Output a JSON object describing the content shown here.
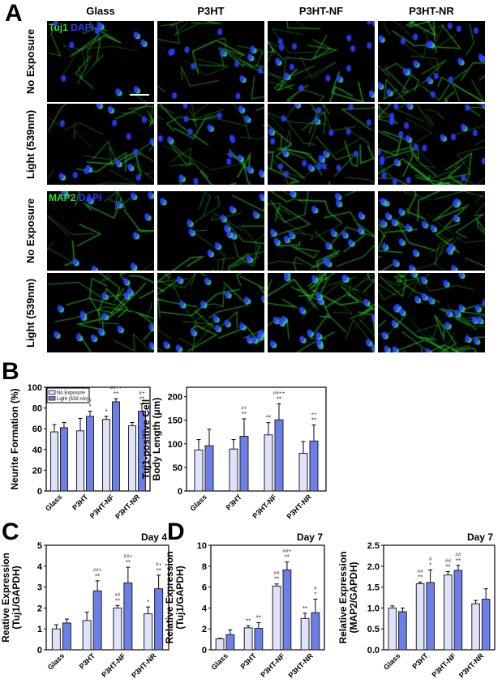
{
  "panel_a": {
    "letter": "A",
    "columns": [
      "Glass",
      "P3HT",
      "P3HT-NF",
      "P3HT-NR"
    ],
    "rows": [
      "No Exposure",
      "Light (539nm)",
      "No Exposure",
      "Light (539nm)"
    ],
    "stain_top": {
      "marker": "Tuj1",
      "counter": "DAPI"
    },
    "stain_bottom": {
      "marker": "MAP2",
      "counter": "DAPI"
    },
    "colors": {
      "marker": "#2fe02f",
      "nuclei": "#2a3cff"
    }
  },
  "letters": {
    "b": "B",
    "c": "C",
    "d": "D"
  },
  "colors": {
    "no_exposure": "#dfe2fb",
    "light": "#6c7ee8"
  },
  "chart_data": [
    {
      "id": "b-neurite",
      "type": "bar",
      "title": "",
      "xlabel": "",
      "ylabel": [
        "Neurite Formation (%)"
      ],
      "categories": [
        "Glass",
        "P3HT",
        "P3HT-NF",
        "P3HT-NR"
      ],
      "ylim": [
        0,
        100
      ],
      "yticks": [
        "0",
        "20",
        "40",
        "60",
        "80",
        "100"
      ],
      "grid": false,
      "legend": {
        "placement": "top-left",
        "entries": [
          "No Exposure",
          "Light (539 nm)"
        ]
      },
      "series": [
        {
          "name": "No Exposure",
          "values": [
            57,
            58,
            69,
            63
          ],
          "error_upper": [
            64,
            70,
            72,
            66
          ],
          "annotations": [
            [],
            [],
            [
              "*"
            ],
            []
          ]
        },
        {
          "name": "Light (539 nm)",
          "values": [
            61,
            72,
            86,
            77
          ],
          "error_upper": [
            66,
            77,
            89,
            84
          ],
          "annotations": [
            [],
            [
              "#",
              "*"
            ],
            [
              "##++",
              "**"
            ],
            [
              "#+",
              "**"
            ]
          ]
        }
      ]
    },
    {
      "id": "b-length",
      "type": "bar",
      "title": "",
      "xlabel": "",
      "ylabel": [
        "Tuj1-positive Cell",
        "Body Length (μm)"
      ],
      "categories": [
        "Glass",
        "P3HT",
        "P3HT-NF",
        "P3HT-NR"
      ],
      "ylim": [
        0,
        220
      ],
      "yticks": [
        "0",
        "50",
        "100",
        "150",
        "200"
      ],
      "grid": false,
      "series": [
        {
          "name": "No Exposure",
          "values": [
            87,
            89,
            119,
            80
          ],
          "error_upper": [
            109,
            109,
            145,
            105
          ],
          "annotations": [
            [],
            [],
            [
              "**"
            ],
            []
          ]
        },
        {
          "name": "Light (539 nm)",
          "values": [
            96,
            116,
            151,
            106
          ],
          "error_upper": [
            131,
            153,
            185,
            140
          ],
          "annotations": [
            [],
            [
              "#+",
              "**"
            ],
            [
              "##++",
              "**"
            ],
            [
              "++",
              "**"
            ]
          ]
        }
      ]
    },
    {
      "id": "c-tuj1-day4",
      "type": "bar",
      "title": "Day 4",
      "xlabel": "",
      "ylabel": [
        "Reative Expression",
        "(Tuj1/GAPDH)"
      ],
      "categories": [
        "Glass",
        "P3HT",
        "P3HT-NF",
        "P3HT-NR"
      ],
      "ylim": [
        0,
        5
      ],
      "yticks": [
        "0",
        "1",
        "2",
        "3",
        "4",
        "5"
      ],
      "grid": false,
      "series": [
        {
          "name": "No Exposure",
          "values": [
            1.0,
            1.4,
            2.0,
            1.72
          ],
          "error_upper": [
            1.2,
            1.8,
            2.12,
            2.05
          ],
          "annotations": [
            [],
            [],
            [
              "##",
              "**"
            ],
            [
              "*"
            ]
          ]
        },
        {
          "name": "Light (539 nm)",
          "values": [
            1.28,
            2.82,
            3.2,
            2.92
          ],
          "error_upper": [
            1.47,
            3.3,
            3.95,
            3.57
          ],
          "annotations": [
            [],
            [
              "##+",
              "**"
            ],
            [
              "##+",
              "**"
            ],
            [
              "#+",
              "**"
            ]
          ]
        }
      ]
    },
    {
      "id": "d-tuj1-day7",
      "type": "bar",
      "title": "Day 7",
      "xlabel": "",
      "ylabel": [
        "Relative Expression",
        "(Tuj1/GAPDH)"
      ],
      "categories": [
        "Glass",
        "P3HT",
        "P3HT-NF",
        "P3HT-NR"
      ],
      "ylim": [
        0,
        10
      ],
      "yticks": [
        "0",
        "2",
        "4",
        "6",
        "8",
        "10"
      ],
      "grid": false,
      "series": [
        {
          "name": "No Exposure",
          "values": [
            1.05,
            2.1,
            6.1,
            3.0
          ],
          "error_upper": [
            1.1,
            2.3,
            6.3,
            3.5
          ],
          "annotations": [
            [],
            [
              "**"
            ],
            [
              "##",
              "**"
            ],
            [
              "**"
            ]
          ]
        },
        {
          "name": "Light (539 nm)",
          "values": [
            1.45,
            2.05,
            7.65,
            3.55
          ],
          "error_upper": [
            1.9,
            2.6,
            8.4,
            4.85
          ],
          "annotations": [
            [],
            [
              "**"
            ],
            [
              "##+",
              "**"
            ],
            [
              "#",
              "*"
            ]
          ]
        }
      ]
    },
    {
      "id": "d-map2-day7",
      "type": "bar",
      "title": "Day 7",
      "xlabel": "",
      "ylabel": [
        "Relative Expression",
        "(MAP2/GAPDH)"
      ],
      "categories": [
        "Glass",
        "P3HT",
        "P3HT-NF",
        "P3HT-NR"
      ],
      "ylim": [
        0,
        2.5
      ],
      "yticks": [
        "0.0",
        "0.5",
        "1.0",
        "1.5",
        "2.0",
        "2.5"
      ],
      "grid": false,
      "series": [
        {
          "name": "No Exposure",
          "values": [
            1.0,
            1.58,
            1.79,
            1.1
          ],
          "error_upper": [
            1.05,
            1.62,
            1.87,
            1.18
          ],
          "annotations": [
            [],
            [
              "##",
              "**"
            ],
            [
              "##",
              "**"
            ],
            []
          ]
        },
        {
          "name": "Light (539 nm)",
          "values": [
            0.91,
            1.61,
            1.9,
            1.21
          ],
          "error_upper": [
            1.0,
            1.91,
            2.02,
            1.46
          ],
          "annotations": [
            [],
            [
              "#",
              "*"
            ],
            [
              "##",
              "**"
            ],
            []
          ]
        }
      ]
    }
  ]
}
